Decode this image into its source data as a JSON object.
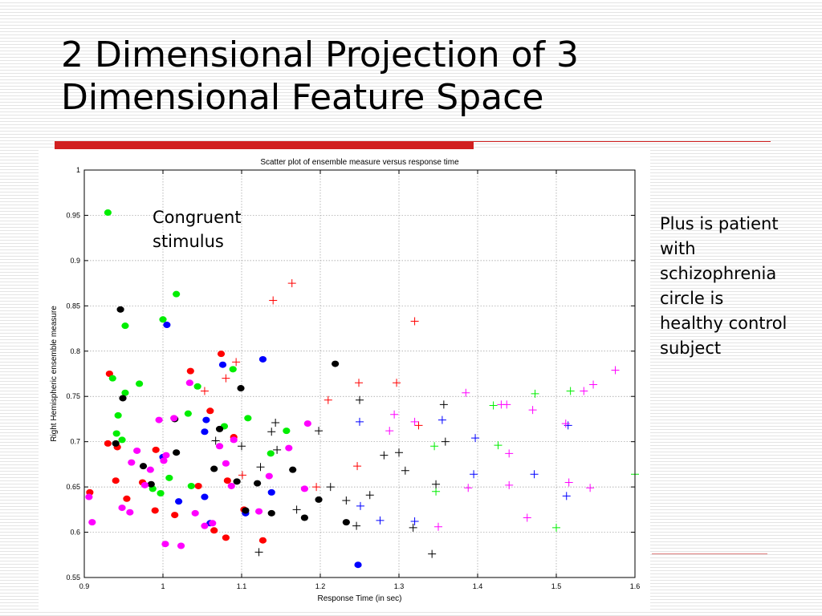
{
  "slide": {
    "title": "2 Dimensional Projection of 3\nDimensional Feature Space",
    "side_note": "Plus is patient\nwith\nschizophrenia\ncircle is\nhealthy control\nsubject",
    "accent_color": "#d11f1f"
  },
  "chart_data": {
    "type": "scatter",
    "title": "Scatter plot of ensemble measure versus response time",
    "xlabel": "Response Time (in sec)",
    "ylabel": "Right Hemispheric ensemble measure",
    "xlim": [
      0.9,
      1.6
    ],
    "ylim": [
      0.55,
      1.0
    ],
    "xticks": [
      0.9,
      1.0,
      1.1,
      1.2,
      1.3,
      1.4,
      1.5,
      1.6
    ],
    "xtick_labels": [
      "0.9",
      "1",
      "1.1",
      "1.2",
      "1.3",
      "1.4",
      "1.5",
      "1.6"
    ],
    "yticks": [
      0.55,
      0.6,
      0.65,
      0.7,
      0.75,
      0.8,
      0.85,
      0.9,
      0.95,
      1.0
    ],
    "ytick_labels": [
      "0.55",
      "0.6",
      "0.65",
      "0.7",
      "0.75",
      "0.8",
      "0.85",
      "0.9",
      "0.95",
      "1"
    ],
    "grid": true,
    "annotations": [
      {
        "text": "Congruent\nstimulus"
      }
    ],
    "series": [
      {
        "marker": "circle",
        "color": "#ff0000",
        "points": [
          [
            0.907,
            0.644
          ],
          [
            0.93,
            0.698
          ],
          [
            0.932,
            0.775
          ],
          [
            0.94,
            0.657
          ],
          [
            0.942,
            0.694
          ],
          [
            0.954,
            0.637
          ],
          [
            0.974,
            0.655
          ],
          [
            0.991,
            0.691
          ],
          [
            0.99,
            0.624
          ],
          [
            1.015,
            0.619
          ],
          [
            1.035,
            0.778
          ],
          [
            1.045,
            0.651
          ],
          [
            1.06,
            0.734
          ],
          [
            1.065,
            0.602
          ],
          [
            1.074,
            0.797
          ],
          [
            1.08,
            0.594
          ],
          [
            1.082,
            0.657
          ],
          [
            1.09,
            0.705
          ],
          [
            1.103,
            0.625
          ],
          [
            1.127,
            0.591
          ]
        ]
      },
      {
        "marker": "circle",
        "color": "#00ee00",
        "points": [
          [
            0.93,
            0.953
          ],
          [
            0.936,
            0.77
          ],
          [
            0.941,
            0.709
          ],
          [
            0.943,
            0.729
          ],
          [
            0.948,
            0.702
          ],
          [
            0.952,
            0.828
          ],
          [
            0.952,
            0.754
          ],
          [
            0.97,
            0.764
          ],
          [
            0.987,
            0.648
          ],
          [
            0.997,
            0.643
          ],
          [
            1.0,
            0.835
          ],
          [
            1.008,
            0.66
          ],
          [
            1.017,
            0.863
          ],
          [
            1.032,
            0.731
          ],
          [
            1.036,
            0.651
          ],
          [
            1.044,
            0.761
          ],
          [
            1.078,
            0.717
          ],
          [
            1.089,
            0.78
          ],
          [
            1.108,
            0.726
          ],
          [
            1.137,
            0.687
          ],
          [
            1.157,
            0.712
          ]
        ]
      },
      {
        "marker": "circle",
        "color": "#0000ff",
        "points": [
          [
            1.0,
            0.683
          ],
          [
            1.005,
            0.829
          ],
          [
            1.02,
            0.634
          ],
          [
            1.053,
            0.711
          ],
          [
            1.053,
            0.639
          ],
          [
            1.055,
            0.724
          ],
          [
            1.06,
            0.61
          ],
          [
            1.076,
            0.785
          ],
          [
            1.105,
            0.621
          ],
          [
            1.127,
            0.791
          ],
          [
            1.138,
            0.644
          ],
          [
            1.248,
            0.564
          ]
        ]
      },
      {
        "marker": "circle",
        "color": "#000000",
        "points": [
          [
            0.94,
            0.698
          ],
          [
            0.946,
            0.846
          ],
          [
            0.949,
            0.748
          ],
          [
            0.975,
            0.673
          ],
          [
            0.985,
            0.653
          ],
          [
            1.015,
            0.725
          ],
          [
            1.017,
            0.688
          ],
          [
            1.065,
            0.67
          ],
          [
            1.072,
            0.714
          ],
          [
            1.094,
            0.656
          ],
          [
            1.099,
            0.759
          ],
          [
            1.105,
            0.624
          ],
          [
            1.12,
            0.654
          ],
          [
            1.138,
            0.621
          ],
          [
            1.165,
            0.669
          ],
          [
            1.18,
            0.616
          ],
          [
            1.198,
            0.636
          ],
          [
            1.219,
            0.786
          ],
          [
            1.233,
            0.611
          ]
        ]
      },
      {
        "marker": "circle",
        "color": "#ff00ff",
        "points": [
          [
            0.906,
            0.639
          ],
          [
            0.91,
            0.611
          ],
          [
            0.948,
            0.627
          ],
          [
            0.958,
            0.622
          ],
          [
            0.96,
            0.677
          ],
          [
            0.967,
            0.69
          ],
          [
            0.977,
            0.652
          ],
          [
            0.984,
            0.669
          ],
          [
            0.995,
            0.724
          ],
          [
            1.001,
            0.679
          ],
          [
            1.003,
            0.587
          ],
          [
            1.004,
            0.685
          ],
          [
            1.014,
            0.726
          ],
          [
            1.023,
            0.585
          ],
          [
            1.034,
            0.765
          ],
          [
            1.041,
            0.621
          ],
          [
            1.053,
            0.607
          ],
          [
            1.063,
            0.61
          ],
          [
            1.072,
            0.695
          ],
          [
            1.08,
            0.676
          ],
          [
            1.087,
            0.651
          ],
          [
            1.09,
            0.702
          ],
          [
            1.122,
            0.623
          ],
          [
            1.135,
            0.662
          ],
          [
            1.16,
            0.693
          ],
          [
            1.18,
            0.648
          ],
          [
            1.184,
            0.72
          ]
        ]
      },
      {
        "marker": "plus",
        "color": "#ff0000",
        "points": [
          [
            1.053,
            0.756
          ],
          [
            1.08,
            0.77
          ],
          [
            1.093,
            0.788
          ],
          [
            1.101,
            0.663
          ],
          [
            1.14,
            0.856
          ],
          [
            1.164,
            0.875
          ],
          [
            1.195,
            0.65
          ],
          [
            1.21,
            0.746
          ],
          [
            1.247,
            0.673
          ],
          [
            1.249,
            0.765
          ],
          [
            1.297,
            0.765
          ],
          [
            1.32,
            0.833
          ],
          [
            1.325,
            0.718
          ]
        ]
      },
      {
        "marker": "plus",
        "color": "#00ee00",
        "points": [
          [
            1.345,
            0.695
          ],
          [
            1.347,
            0.645
          ],
          [
            1.42,
            0.74
          ],
          [
            1.426,
            0.696
          ],
          [
            1.473,
            0.753
          ],
          [
            1.5,
            0.605
          ],
          [
            1.518,
            0.756
          ],
          [
            1.6,
            0.664
          ]
        ]
      },
      {
        "marker": "plus",
        "color": "#0000ff",
        "points": [
          [
            1.251,
            0.629
          ],
          [
            1.25,
            0.722
          ],
          [
            1.276,
            0.613
          ],
          [
            1.32,
            0.612
          ],
          [
            1.355,
            0.724
          ],
          [
            1.397,
            0.704
          ],
          [
            1.395,
            0.664
          ],
          [
            1.472,
            0.664
          ],
          [
            1.513,
            0.64
          ],
          [
            1.515,
            0.718
          ]
        ]
      },
      {
        "marker": "plus",
        "color": "#000000",
        "points": [
          [
            1.067,
            0.701
          ],
          [
            1.1,
            0.695
          ],
          [
            1.122,
            0.578
          ],
          [
            1.124,
            0.672
          ],
          [
            1.138,
            0.711
          ],
          [
            1.143,
            0.721
          ],
          [
            1.145,
            0.691
          ],
          [
            1.17,
            0.625
          ],
          [
            1.198,
            0.712
          ],
          [
            1.213,
            0.65
          ],
          [
            1.233,
            0.635
          ],
          [
            1.246,
            0.607
          ],
          [
            1.25,
            0.746
          ],
          [
            1.263,
            0.641
          ],
          [
            1.281,
            0.685
          ],
          [
            1.3,
            0.688
          ],
          [
            1.308,
            0.668
          ],
          [
            1.318,
            0.605
          ],
          [
            1.342,
            0.576
          ],
          [
            1.347,
            0.653
          ],
          [
            1.357,
            0.741
          ],
          [
            1.359,
            0.7
          ]
        ]
      },
      {
        "marker": "plus",
        "color": "#ff00ff",
        "points": [
          [
            1.288,
            0.712
          ],
          [
            1.294,
            0.73
          ],
          [
            1.32,
            0.722
          ],
          [
            1.35,
            0.606
          ],
          [
            1.385,
            0.754
          ],
          [
            1.388,
            0.649
          ],
          [
            1.43,
            0.741
          ],
          [
            1.437,
            0.741
          ],
          [
            1.44,
            0.687
          ],
          [
            1.44,
            0.652
          ],
          [
            1.463,
            0.616
          ],
          [
            1.47,
            0.735
          ],
          [
            1.512,
            0.72
          ],
          [
            1.516,
            0.655
          ],
          [
            1.535,
            0.756
          ],
          [
            1.543,
            0.649
          ],
          [
            1.547,
            0.763
          ],
          [
            1.575,
            0.779
          ]
        ]
      }
    ]
  }
}
